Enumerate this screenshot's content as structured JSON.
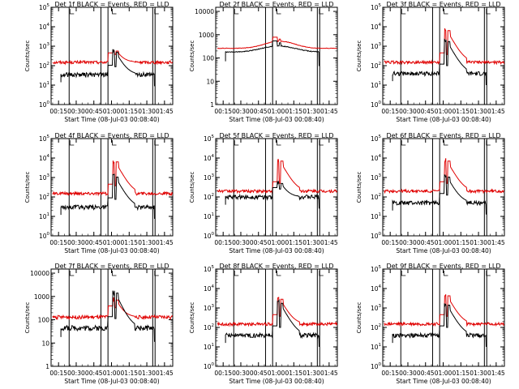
{
  "figure": {
    "colors": {
      "events": "#000000",
      "lld": "#e00000",
      "axes": "#000000",
      "background": "#ffffff"
    }
  },
  "chart_data": [
    {
      "type": "line",
      "title": "Det  1f BLACK = Events, RED = LLD",
      "ylabel": "Counts/sec",
      "xlabel": "Start Time (08-Jul-03 00:08:40)",
      "xticks": [
        "00:15",
        "00:30",
        "00:45",
        "01:00",
        "01:15",
        "01:30",
        "01:45"
      ],
      "yscale": "log",
      "ylim": [
        1,
        100000
      ],
      "yticks": [
        "10^0",
        "10^1",
        "10^2",
        "10^3",
        "10^4",
        "10^5"
      ],
      "flare_peak": {
        "events": 700,
        "lld": 800
      },
      "base": {
        "events": 35,
        "lld": 150
      },
      "series": [
        {
          "name": "Events",
          "color": "black"
        },
        {
          "name": "LLD",
          "color": "red"
        }
      ]
    },
    {
      "type": "line",
      "title": "Det  2f BLACK = Events, RED = LLD",
      "ylabel": "Counts/sec",
      "xlabel": "Start Time (08-Jul-03 00:08:40)",
      "xticks": [
        "00:15",
        "00:30",
        "00:45",
        "01:00",
        "01:15",
        "01:30",
        "01:45"
      ],
      "yscale": "log",
      "ylim": [
        1,
        15000
      ],
      "yticks": [
        "1",
        "10",
        "100",
        "1000",
        "10000"
      ],
      "flare_peak": {
        "events": 320,
        "lld": 520
      },
      "base": {
        "events": 180,
        "lld": 260
      },
      "series": [
        {
          "name": "Events",
          "color": "black"
        },
        {
          "name": "LLD",
          "color": "red"
        }
      ]
    },
    {
      "type": "line",
      "title": "Det  3f BLACK = Events, RED = LLD",
      "ylabel": "Counts/sec",
      "xlabel": "Start Time (08-Jul-03 00:08:40)",
      "xticks": [
        "00:15",
        "00:30",
        "00:45",
        "01:00",
        "01:15",
        "01:30",
        "01:45"
      ],
      "yscale": "log",
      "ylim": [
        1,
        100000
      ],
      "yticks": [
        "10^0",
        "10^1",
        "10^2",
        "10^3",
        "10^4",
        "10^5"
      ],
      "flare_peak": {
        "events": 2500,
        "lld": 9000
      },
      "base": {
        "events": 40,
        "lld": 150
      },
      "series": [
        {
          "name": "Events",
          "color": "black"
        },
        {
          "name": "LLD",
          "color": "red"
        }
      ]
    },
    {
      "type": "line",
      "title": "Det  4f BLACK = Events, RED = LLD",
      "ylabel": "Counts/sec",
      "xlabel": "Start Time (08-Jul-03 00:08:40)",
      "xticks": [
        "00:15",
        "00:30",
        "00:45",
        "01:00",
        "01:15",
        "01:30",
        "01:45"
      ],
      "yscale": "log",
      "ylim": [
        1,
        100000
      ],
      "yticks": [
        "10^0",
        "10^1",
        "10^2",
        "10^3",
        "10^4",
        "10^5"
      ],
      "flare_peak": {
        "events": 1500,
        "lld": 9000
      },
      "base": {
        "events": 30,
        "lld": 150
      },
      "series": [
        {
          "name": "Events",
          "color": "black"
        },
        {
          "name": "LLD",
          "color": "red"
        }
      ]
    },
    {
      "type": "line",
      "title": "Det  5f BLACK = Events, RED = LLD",
      "ylabel": "Counts/sec",
      "xlabel": "Start Time (08-Jul-03 00:08:40)",
      "xticks": [
        "00:15",
        "00:30",
        "00:45",
        "01:00",
        "01:15",
        "01:30",
        "01:45"
      ],
      "yscale": "log",
      "ylim": [
        1,
        100000
      ],
      "yticks": [
        "10^0",
        "10^1",
        "10^2",
        "10^3",
        "10^4",
        "10^5"
      ],
      "flare_peak": {
        "events": 700,
        "lld": 10000
      },
      "base": {
        "events": 100,
        "lld": 200
      },
      "series": [
        {
          "name": "Events",
          "color": "black"
        },
        {
          "name": "LLD",
          "color": "red"
        }
      ]
    },
    {
      "type": "line",
      "title": "Det  6f BLACK = Events, RED = LLD",
      "ylabel": "Counts/sec",
      "xlabel": "Start Time (08-Jul-03 00:08:40)",
      "xticks": [
        "00:15",
        "00:30",
        "00:45",
        "01:00",
        "01:15",
        "01:30",
        "01:45"
      ],
      "yscale": "log",
      "ylim": [
        1,
        100000
      ],
      "yticks": [
        "10^0",
        "10^1",
        "10^2",
        "10^3",
        "10^4",
        "10^5"
      ],
      "flare_peak": {
        "events": 1500,
        "lld": 10000
      },
      "base": {
        "events": 50,
        "lld": 200
      },
      "series": [
        {
          "name": "Events",
          "color": "black"
        },
        {
          "name": "LLD",
          "color": "red"
        }
      ]
    },
    {
      "type": "line",
      "title": "Det  7f BLACK = Events, RED = LLD",
      "ylabel": "Counts/sec",
      "xlabel": "Start Time (08-Jul-03 00:08:40)",
      "xticks": [
        "00:15",
        "00:30",
        "00:45",
        "01:00",
        "01:15",
        "01:30",
        "01:45"
      ],
      "yscale": "log",
      "ylim": [
        1,
        15000
      ],
      "yticks": [
        "1",
        "10",
        "100",
        "1000",
        "10000"
      ],
      "flare_peak": {
        "events": 2000,
        "lld": 1000
      },
      "base": {
        "events": 45,
        "lld": 130
      },
      "series": [
        {
          "name": "Events",
          "color": "black"
        },
        {
          "name": "LLD",
          "color": "red"
        }
      ]
    },
    {
      "type": "line",
      "title": "Det  8f BLACK = Events, RED = LLD",
      "ylabel": "Counts/sec",
      "xlabel": "Start Time (08-Jul-03 00:08:40)",
      "xticks": [
        "00:15",
        "00:30",
        "00:45",
        "01:00",
        "01:15",
        "01:30",
        "01:45"
      ],
      "yscale": "log",
      "ylim": [
        1,
        100000
      ],
      "yticks": [
        "10^0",
        "10^1",
        "10^2",
        "10^3",
        "10^4",
        "10^5"
      ],
      "flare_peak": {
        "events": 2500,
        "lld": 4000
      },
      "base": {
        "events": 40,
        "lld": 150
      },
      "series": [
        {
          "name": "Events",
          "color": "black"
        },
        {
          "name": "LLD",
          "color": "red"
        }
      ]
    },
    {
      "type": "line",
      "title": "Det  9f BLACK = Events, RED = LLD",
      "ylabel": "Counts/sec",
      "xlabel": "Start Time (08-Jul-03 00:08:40)",
      "xticks": [
        "00:15",
        "00:30",
        "00:45",
        "01:00",
        "01:15",
        "01:30",
        "01:45"
      ],
      "yscale": "log",
      "ylim": [
        1,
        100000
      ],
      "yticks": [
        "10^0",
        "10^1",
        "10^2",
        "10^3",
        "10^4",
        "10^5"
      ],
      "flare_peak": {
        "events": 2000,
        "lld": 6000
      },
      "base": {
        "events": 40,
        "lld": 150
      },
      "series": [
        {
          "name": "Events",
          "color": "black"
        },
        {
          "name": "LLD",
          "color": "red"
        }
      ]
    }
  ]
}
